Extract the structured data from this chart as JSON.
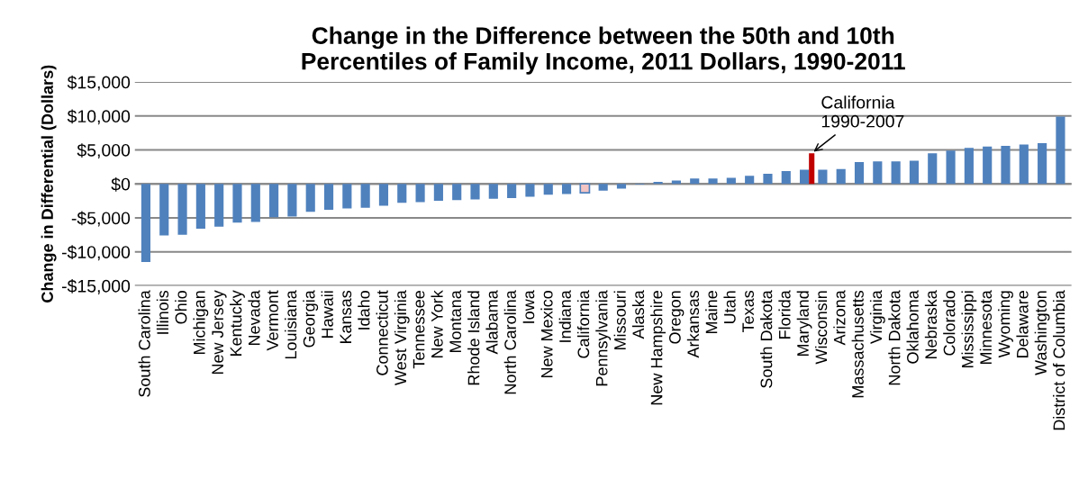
{
  "chart_data": {
    "type": "bar",
    "title": "Change in the Difference between the 50th and 10th\nPercentiles of Family Income, 2011 Dollars, 1990-2011",
    "ylabel": "Change in Differential (Dollars)",
    "categories": [
      "South Carolina",
      "Illinois",
      "Ohio",
      "Michigan",
      "New Jersey",
      "Kentucky",
      "Nevada",
      "Vermont",
      "Louisiana",
      "Georgia",
      "Hawaii",
      "Kansas",
      "Idaho",
      "Connecticut",
      "West Virginia",
      "Tennessee",
      "New York",
      "Montana",
      "Rhode Island",
      "Alabama",
      "North Carolina",
      "Iowa",
      "New Mexico",
      "Indiana",
      "California",
      "Pennsylvania",
      "Missouri",
      "Alaska",
      "New Hampshire",
      "Oregon",
      "Arkansas",
      "Maine",
      "Utah",
      "Texas",
      "South Dakota",
      "Florida",
      "Maryland",
      "Wisconsin",
      "Arizona",
      "Massachusetts",
      "Virginia",
      "North Dakota",
      "Oklahoma",
      "Nebraska",
      "Colorado",
      "Mississippi",
      "Minnesota",
      "Wyoming",
      "Delaware",
      "Washington",
      "District of Columbia"
    ],
    "series": [
      {
        "color": "#4f81bd",
        "colors": [
          "#4f81bd",
          "#4f81bd",
          "#4f81bd",
          "#4f81bd",
          "#4f81bd",
          "#4f81bd",
          "#4f81bd",
          "#4f81bd",
          "#4f81bd",
          "#4f81bd",
          "#4f81bd",
          "#4f81bd",
          "#4f81bd",
          "#4f81bd",
          "#4f81bd",
          "#4f81bd",
          "#4f81bd",
          "#4f81bd",
          "#4f81bd",
          "#4f81bd",
          "#4f81bd",
          "#4f81bd",
          "#4f81bd",
          "#4f81bd",
          "#f2c4c4",
          "#4f81bd",
          "#4f81bd",
          "#4f81bd",
          "#4f81bd",
          "#4f81bd",
          "#4f81bd",
          "#4f81bd",
          "#4f81bd",
          "#4f81bd",
          "#4f81bd",
          "#4f81bd",
          "#4f81bd",
          "#4f81bd",
          "#4f81bd",
          "#4f81bd",
          "#4f81bd",
          "#4f81bd",
          "#4f81bd",
          "#4f81bd",
          "#4f81bd",
          "#4f81bd",
          "#4f81bd",
          "#4f81bd",
          "#4f81bd",
          "#4f81bd",
          "#4f81bd"
        ],
        "values": [
          -11500,
          -7600,
          -7500,
          -6600,
          -6300,
          -5700,
          -5600,
          -4900,
          -4800,
          -4100,
          -3800,
          -3600,
          -3500,
          -3200,
          -2800,
          -2700,
          -2500,
          -2400,
          -2300,
          -2200,
          -2100,
          -1900,
          -1600,
          -1500,
          -1300,
          -1000,
          -700,
          -100,
          300,
          500,
          800,
          800,
          900,
          1200,
          1500,
          1900,
          2100,
          2100,
          2200,
          3200,
          3300,
          3300,
          3400,
          4500,
          4900,
          5300,
          5500,
          5600,
          5800,
          6000,
          9900
        ]
      },
      {
        "color": "#c00000",
        "values": [
          null,
          null,
          null,
          null,
          null,
          null,
          null,
          null,
          null,
          null,
          null,
          null,
          null,
          null,
          null,
          null,
          null,
          null,
          null,
          null,
          null,
          null,
          null,
          null,
          null,
          null,
          null,
          null,
          null,
          null,
          null,
          null,
          null,
          null,
          null,
          null,
          4500,
          null,
          null,
          null,
          null,
          null,
          null,
          null,
          null,
          null,
          null,
          null,
          null,
          null,
          null
        ]
      }
    ],
    "ylim": [
      -15000,
      15000
    ],
    "yticks": [
      {
        "value": -15000,
        "label": "-$15,000"
      },
      {
        "value": -10000,
        "label": "-$10,000"
      },
      {
        "value": -5000,
        "label": "-$5,000"
      },
      {
        "value": 0,
        "label": "$0"
      },
      {
        "value": 5000,
        "label": "$5,000"
      },
      {
        "value": 10000,
        "label": "$10,000"
      },
      {
        "value": 15000,
        "label": "$15,000"
      }
    ],
    "grid": "y",
    "annotations": [
      "California\n1990-2007"
    ]
  }
}
